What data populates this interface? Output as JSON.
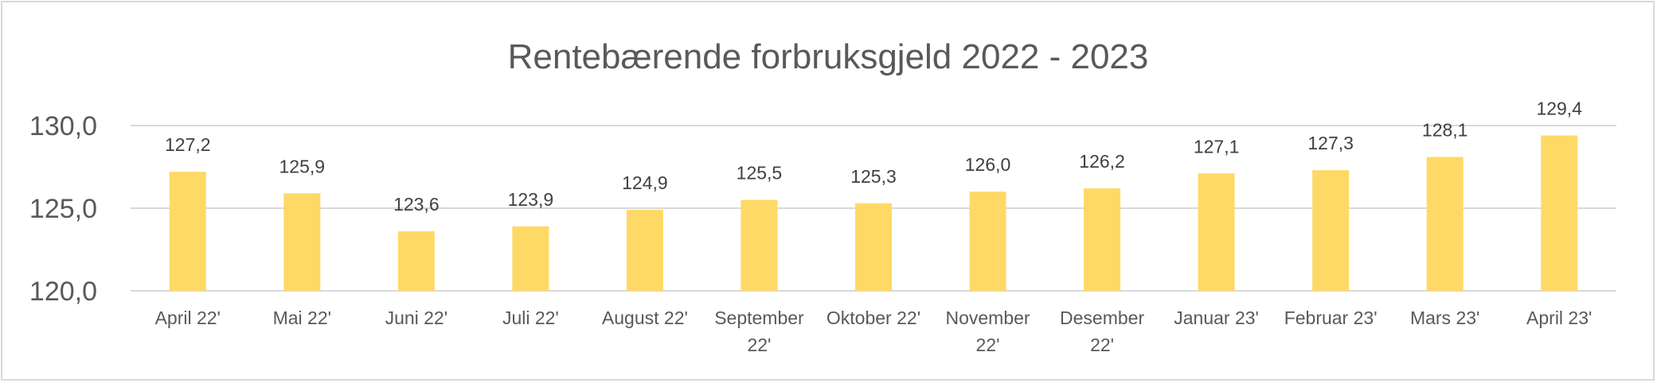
{
  "chart_data": {
    "type": "bar",
    "title": "Rentebærende forbruksgjeld 2022 - 2023",
    "categories": [
      [
        "April 22'"
      ],
      [
        "Mai 22'"
      ],
      [
        "Juni 22'"
      ],
      [
        "Juli 22'"
      ],
      [
        "August 22'"
      ],
      [
        "September",
        "22'"
      ],
      [
        "Oktober 22'"
      ],
      [
        "November",
        "22'"
      ],
      [
        "Desember",
        "22'"
      ],
      [
        "Januar 23'"
      ],
      [
        "Februar 23'"
      ],
      [
        "Mars 23'"
      ],
      [
        "April 23'"
      ]
    ],
    "values": [
      127.2,
      125.9,
      123.6,
      123.9,
      124.9,
      125.5,
      125.3,
      126.0,
      126.2,
      127.1,
      127.3,
      128.1,
      129.4
    ],
    "value_labels": [
      "127,2",
      "125,9",
      "123,6",
      "123,9",
      "124,9",
      "125,5",
      "125,3",
      "126,0",
      "126,2",
      "127,1",
      "127,3",
      "128,1",
      "129,4"
    ],
    "yticks": [
      120,
      125,
      130
    ],
    "ytick_labels": [
      "120,0",
      "125,0",
      "130,0"
    ],
    "ylim": [
      120,
      130
    ],
    "grid": true,
    "bar_color": "#ffd966",
    "xlabel": "",
    "ylabel": ""
  }
}
